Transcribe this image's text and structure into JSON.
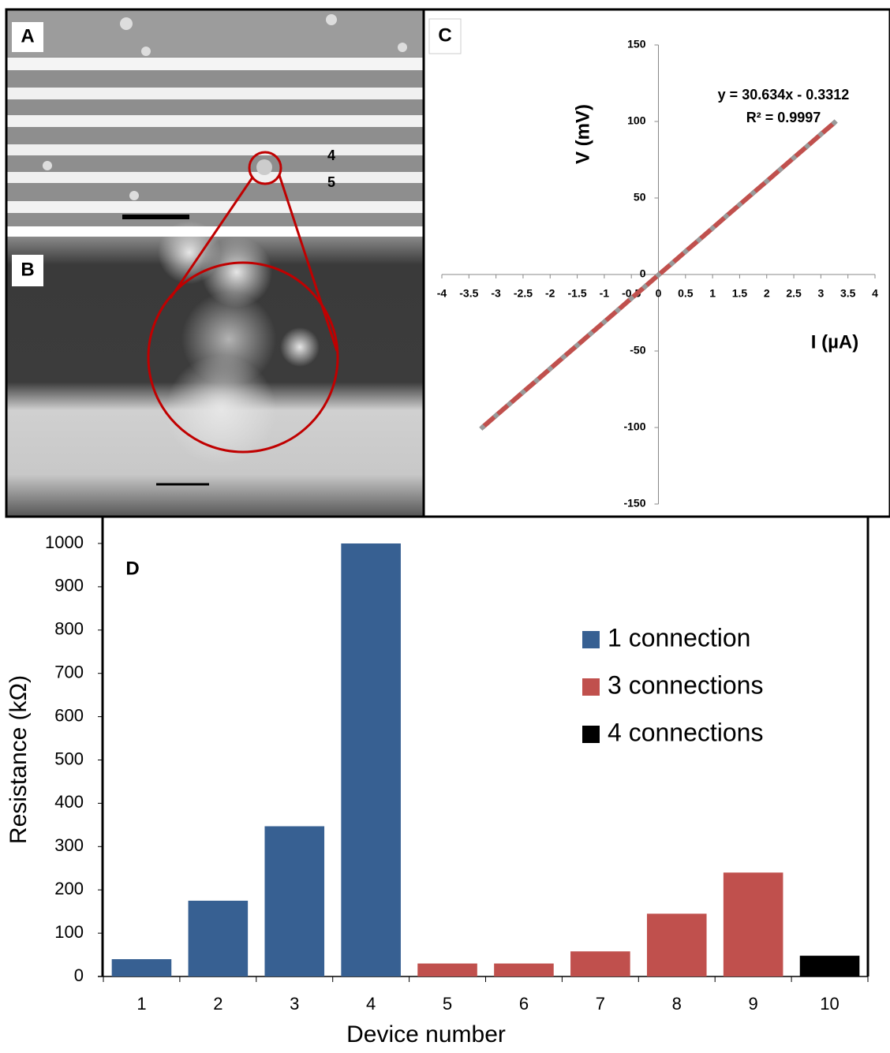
{
  "images": {
    "panel_a_label": "A",
    "panel_b_label": "B",
    "electrode_labels": [
      "4",
      "5"
    ]
  },
  "chart_data": [
    {
      "type": "line",
      "panel_label": "C",
      "x_label": "I (µA)",
      "y_label": "V (mV)",
      "annotations": [
        "y = 30.634x - 0.3312",
        "R² = 0.9997"
      ],
      "x": [
        -3.25,
        -3,
        -2.75,
        -2.5,
        -2.25,
        -2,
        -1.75,
        -1.5,
        -1.25,
        -1,
        -0.75,
        -0.5,
        -0.25,
        0,
        0.25,
        0.5,
        0.75,
        1,
        1.25,
        1.5,
        1.75,
        2,
        2.25,
        2.5,
        2.75,
        3,
        3.25
      ],
      "values": [
        -99.9,
        -92.2,
        -84.6,
        -76.9,
        -69.3,
        -61.6,
        -53.9,
        -46.3,
        -38.6,
        -31.0,
        -23.3,
        -15.6,
        -8.0,
        -0.3,
        7.3,
        15.0,
        22.6,
        30.3,
        38.0,
        45.6,
        53.3,
        60.9,
        68.6,
        76.3,
        83.9,
        91.6,
        99.2
      ],
      "color": "#c0504d",
      "xlim": [
        -4,
        4
      ],
      "xticks": [
        -4,
        -3.5,
        -3,
        -2.5,
        -2,
        -1.5,
        -1,
        -0.5,
        0,
        0.5,
        1,
        1.5,
        2,
        2.5,
        3,
        3.5,
        4
      ],
      "ylim": [
        -150,
        150
      ],
      "yticks": [
        -150,
        -100,
        -50,
        0,
        50,
        100,
        150
      ]
    },
    {
      "type": "bar",
      "panel_label": "D",
      "x_label": "Device number",
      "y_label": "Resistance (kΩ)",
      "categories": [
        "1",
        "2",
        "3",
        "4",
        "5",
        "6",
        "7",
        "8",
        "9",
        "10"
      ],
      "series": [
        {
          "name": "1 connection",
          "color": "#376092",
          "values": [
            40,
            175,
            347,
            1000,
            null,
            null,
            null,
            null,
            null,
            null
          ]
        },
        {
          "name": "3 connections",
          "color": "#c0504d",
          "values": [
            null,
            null,
            null,
            null,
            30,
            30,
            58,
            145,
            240,
            null
          ]
        },
        {
          "name": "4 connections",
          "color": "#000000",
          "values": [
            null,
            null,
            null,
            null,
            null,
            null,
            null,
            null,
            null,
            48
          ]
        }
      ],
      "ylim": [
        0,
        1000
      ],
      "yticks": [
        0,
        100,
        200,
        300,
        400,
        500,
        600,
        700,
        800,
        900,
        1000
      ]
    }
  ]
}
